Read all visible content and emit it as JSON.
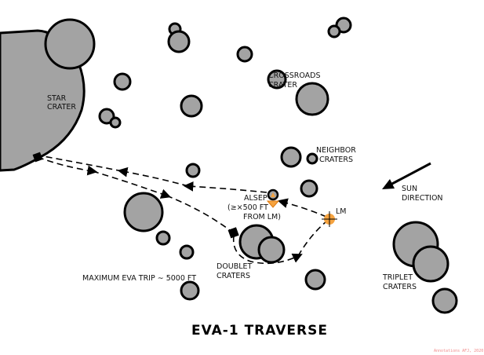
{
  "title": "EVA-1 TRAVERSE",
  "labels": {
    "star_crater": [
      "STAR",
      "CRATER"
    ],
    "crossroads_crater": [
      "CROSSROADS",
      "CRATER"
    ],
    "neighbor_craters": [
      "NEIGHBOR",
      "CRATERS"
    ],
    "sun_direction": [
      "SUN",
      "DIRECTION"
    ],
    "lm": "LM",
    "alsep": [
      "ALSEP",
      "(≥×500 FT",
      "FROM LM)"
    ],
    "doublet_craters": [
      "DOUBLET",
      "CRATERS"
    ],
    "triplet_craters": [
      "TRIPLET",
      "CRATERS"
    ],
    "max_eva": "MAXIMUM EVA TRIP ∼ 5000 FT"
  },
  "watermark": "Annotations AFJ, 2020",
  "colors": {
    "crater_fill": "#a3a3a3",
    "lm_marker": "#f5a340",
    "alsep_marker": "#f5a340",
    "outline": "#000000"
  }
}
